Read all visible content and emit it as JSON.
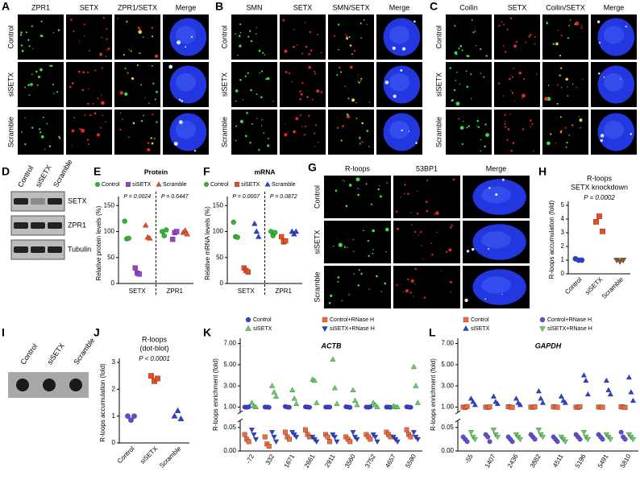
{
  "images": [
    {
      "letter": "A",
      "columns": [
        "ZPR1",
        "SETX",
        "ZPR1/SETX",
        "Merge"
      ],
      "rows": [
        "Control",
        "siSETX",
        "Scramble"
      ]
    },
    {
      "letter": "B",
      "columns": [
        "SMN",
        "SETX",
        "SMN/SETX",
        "Merge"
      ],
      "rows": [
        "Control",
        "siSETX",
        "Scramble"
      ]
    },
    {
      "letter": "C",
      "columns": [
        "Coilin",
        "SETX",
        "Coilin/SETX",
        "Merge"
      ],
      "rows": [
        "Control",
        "siSETX",
        "Scramble"
      ]
    },
    {
      "letter": "G",
      "columns": [
        "R-loops",
        "53BP1",
        "Merge"
      ],
      "rows": [
        "Control",
        "siSETX",
        "Scramble"
      ]
    }
  ],
  "blot": {
    "letter": "D",
    "columns": [
      "Control",
      "siSETX",
      "Scramble"
    ],
    "rows": [
      "SETX",
      "ZPR1",
      "Tubulin"
    ]
  },
  "dotblot": {
    "letter": "I",
    "columns": [
      "Control",
      "siSETX",
      "Scramble"
    ]
  },
  "chart_data": [
    {
      "type": "dot",
      "letter": "E",
      "title": "Protein",
      "ylabel": "Relative protein levels (%)",
      "categories": [
        "SETX",
        "ZPR1"
      ],
      "p_values": [
        "P = 0.0024",
        "P = 0.6447"
      ],
      "ylim": [
        0,
        155
      ],
      "yticks": [
        0,
        50,
        100,
        150
      ],
      "series": [
        {
          "name": "Control",
          "color": "#2db82d",
          "marker": "circle",
          "values": [
            [
              120,
              86,
              87
            ],
            [
              100,
              92,
              103
            ]
          ]
        },
        {
          "name": "siSETX",
          "color": "#9b3fd1",
          "marker": "square",
          "values": [
            [
              30,
              20,
              18
            ],
            [
              85,
              98,
              100
            ]
          ]
        },
        {
          "name": "Scramble",
          "color": "#f04a1d",
          "marker": "triangle",
          "values": [
            [
              112,
              89,
              87
            ],
            [
              98,
              102,
              95
            ]
          ]
        }
      ]
    },
    {
      "type": "dot",
      "letter": "F",
      "title": "mRNA",
      "ylabel": "Relative mRNA levels (%)",
      "categories": [
        "SETX",
        "ZPR1"
      ],
      "p_values": [
        "P = 0.0007",
        "P = 0.0872"
      ],
      "ylim": [
        0,
        155
      ],
      "yticks": [
        0,
        50,
        100,
        150
      ],
      "series": [
        {
          "name": "Control",
          "color": "#2db82d",
          "marker": "circle",
          "values": [
            [
              118,
              90,
              89
            ],
            [
              100,
              92,
              98
            ]
          ]
        },
        {
          "name": "siSETX",
          "color": "#f04a1d",
          "marker": "square",
          "values": [
            [
              30,
              25,
              22
            ],
            [
              90,
              80,
              82
            ]
          ]
        },
        {
          "name": "Scramble",
          "color": "#2a3fd8",
          "marker": "triangle",
          "values": [
            [
              115,
              100,
              90
            ],
            [
              100,
              95,
              100
            ]
          ]
        }
      ]
    },
    {
      "type": "strip",
      "letter": "H",
      "title": "R-loops",
      "subtitle": "SETX knockdown",
      "ylabel": "R-loops accumulation (fold)",
      "p_value": "P = 0.0002",
      "categories": [
        "Control",
        "siSETX",
        "Scramble"
      ],
      "values": [
        [
          1.1,
          1.0,
          1.0
        ],
        [
          3.8,
          4.2,
          3.1
        ],
        [
          1.0,
          0.9,
          1.0
        ]
      ],
      "colors": [
        "#2a3fd8",
        "#f04a1d",
        "#8b5a2b"
      ],
      "markers": [
        "circle",
        "square",
        "tridown"
      ],
      "ylim": [
        0,
        5
      ],
      "yticks": [
        0,
        1,
        2,
        3,
        4,
        5
      ]
    },
    {
      "type": "strip",
      "letter": "J",
      "title": "R-loops",
      "subtitle": "(dot-blot)",
      "ylabel": "R-loops accumulation (fold)",
      "p_value": "P < 0.0001",
      "categories": [
        "Control",
        "siSETX",
        "Scramble"
      ],
      "values": [
        [
          1.0,
          0.85,
          1.0
        ],
        [
          2.5,
          2.3,
          2.4
        ],
        [
          1.0,
          1.2,
          0.9
        ]
      ],
      "colors": [
        "#5b4fd6",
        "#f04a1d",
        "#2a3fd8"
      ],
      "markers": [
        "circle",
        "square",
        "triangle"
      ],
      "ylim": [
        0,
        3
      ],
      "yticks": [
        0,
        1,
        2,
        3
      ]
    },
    {
      "type": "broken",
      "letter": "K",
      "title": "ACTB",
      "ylabel": "R-loops enrichment (fold)",
      "categories": [
        "-72",
        "332",
        "1671",
        "2661",
        "2911",
        "3560",
        "3752",
        "4657",
        "5590"
      ],
      "ylim_upper": [
        0.5,
        7.5
      ],
      "yticks_upper": [
        {
          "value": 1,
          "label": "1.00"
        },
        {
          "value": 3,
          "label": "3.00"
        },
        {
          "value": 5,
          "label": "5.00"
        },
        {
          "value": 7,
          "label": "7.00"
        }
      ],
      "ylim_lower": [
        0,
        0.065
      ],
      "yticks_lower": [
        {
          "value": 0,
          "label": "0.00"
        },
        {
          "value": 0.05,
          "label": "0.05"
        }
      ],
      "series": [
        {
          "name": "Control",
          "color": "#3b3fd8",
          "marker": "circle",
          "values": [
            [
              1.0,
              0.98,
              1.02
            ],
            [
              1.0,
              1.0,
              0.97
            ],
            [
              1.05,
              1.0,
              0.98
            ],
            [
              1.02,
              1.0,
              0.98
            ],
            [
              1.0,
              1.0,
              1.0
            ],
            [
              1.03,
              1.0,
              0.97
            ],
            [
              1.0,
              0.98,
              1.02
            ],
            [
              1.0,
              1.0,
              0.98
            ],
            [
              1.02,
              1.0,
              0.98
            ]
          ]
        },
        {
          "name": "siSETX",
          "color": "#5fd35f",
          "marker": "triangle",
          "values": [
            [
              1.4,
              1.1,
              1.0
            ],
            [
              3.0,
              2.4,
              2.0
            ],
            [
              2.6,
              1.8,
              1.3
            ],
            [
              3.6,
              3.5,
              1.4
            ],
            [
              5.5,
              2.8,
              1.3
            ],
            [
              2.6,
              1.6,
              1.2
            ],
            [
              1.4,
              1.2,
              1.0
            ],
            [
              1.1,
              1.0,
              1.0
            ],
            [
              4.8,
              3.0,
              1.4
            ]
          ]
        },
        {
          "name": "Control+RNase H",
          "color": "#f26a3a",
          "marker": "square",
          "values": [
            [
              0.035,
              0.025,
              0.02
            ],
            [
              0.03,
              0.015,
              0.01
            ],
            [
              0.04,
              0.03,
              0.025
            ],
            [
              0.045,
              0.035,
              0.03
            ],
            [
              0.035,
              0.03,
              0.02
            ],
            [
              0.03,
              0.025,
              0.02
            ],
            [
              0.035,
              0.03,
              0.025
            ],
            [
              0.04,
              0.035,
              0.03
            ],
            [
              0.045,
              0.035,
              0.03
            ]
          ]
        },
        {
          "name": "siSETX+RNase H",
          "color": "#2a3fd8",
          "marker": "tridown",
          "values": [
            [
              0.045,
              0.035,
              0.025
            ],
            [
              0.04,
              0.03,
              0.02
            ],
            [
              0.04,
              0.035,
              0.03
            ],
            [
              0.03,
              0.025,
              0.02
            ],
            [
              0.035,
              0.03,
              0.02
            ],
            [
              0.04,
              0.03,
              0.025
            ],
            [
              0.035,
              0.03,
              0.02
            ],
            [
              0.03,
              0.025,
              0.02
            ],
            [
              0.04,
              0.03,
              0.025
            ]
          ]
        }
      ]
    },
    {
      "type": "broken",
      "letter": "L",
      "title": "GAPDH",
      "ylabel": "R-loops enrichment (fold)",
      "categories": [
        "-55",
        "1407",
        "2436",
        "3882",
        "4511",
        "5196",
        "5491",
        "5810"
      ],
      "ylim_upper": [
        0.5,
        7.5
      ],
      "yticks_upper": [
        {
          "value": 1,
          "label": "1.00"
        },
        {
          "value": 3,
          "label": "3.00"
        },
        {
          "value": 5,
          "label": "5.00"
        },
        {
          "value": 7,
          "label": "7.00"
        }
      ],
      "ylim_lower": [
        0,
        0.065
      ],
      "yticks_lower": [
        {
          "value": 0,
          "label": "0.00"
        },
        {
          "value": 0.05,
          "label": "0.05"
        }
      ],
      "series": [
        {
          "name": "Control",
          "color": "#f26a3a",
          "marker": "square",
          "values": [
            [
              1.0,
              0.95,
              1.05
            ],
            [
              1.0,
              0.97,
              1.02
            ],
            [
              1.03,
              1.0,
              0.97
            ],
            [
              1.0,
              0.98,
              1.02
            ],
            [
              1.02,
              1.0,
              0.98
            ],
            [
              1.0,
              0.97,
              1.03
            ],
            [
              1.0,
              1.0,
              0.98
            ],
            [
              1.02,
              1.0,
              0.97
            ]
          ]
        },
        {
          "name": "siSETX",
          "color": "#2a3fd8",
          "marker": "triangle",
          "values": [
            [
              1.8,
              1.5,
              1.2
            ],
            [
              2.0,
              1.5,
              1.3
            ],
            [
              1.8,
              1.4,
              1.2
            ],
            [
              2.5,
              1.8,
              1.4
            ],
            [
              2.0,
              1.6,
              1.4
            ],
            [
              4.0,
              3.5,
              2.2
            ],
            [
              3.5,
              2.6,
              2.2
            ],
            [
              3.8,
              2.4,
              1.6
            ]
          ]
        },
        {
          "name": "Control+RNase H",
          "color": "#5b4fd6",
          "marker": "circle",
          "values": [
            [
              0.03,
              0.025,
              0.02
            ],
            [
              0.035,
              0.03,
              0.02
            ],
            [
              0.03,
              0.025,
              0.02
            ],
            [
              0.035,
              0.03,
              0.025
            ],
            [
              0.03,
              0.025,
              0.02
            ],
            [
              0.035,
              0.03,
              0.025
            ],
            [
              0.035,
              0.03,
              0.025
            ],
            [
              0.04,
              0.03,
              0.025
            ]
          ]
        },
        {
          "name": "siSETX+RNase H",
          "color": "#5fd35f",
          "marker": "tridown",
          "values": [
            [
              0.04,
              0.03,
              0.025
            ],
            [
              0.045,
              0.035,
              0.03
            ],
            [
              0.035,
              0.03,
              0.025
            ],
            [
              0.045,
              0.035,
              0.03
            ],
            [
              0.03,
              0.025,
              0.02
            ],
            [
              0.04,
              0.03,
              0.025
            ],
            [
              0.035,
              0.03,
              0.025
            ],
            [
              0.035,
              0.03,
              0.025
            ]
          ]
        }
      ]
    }
  ]
}
